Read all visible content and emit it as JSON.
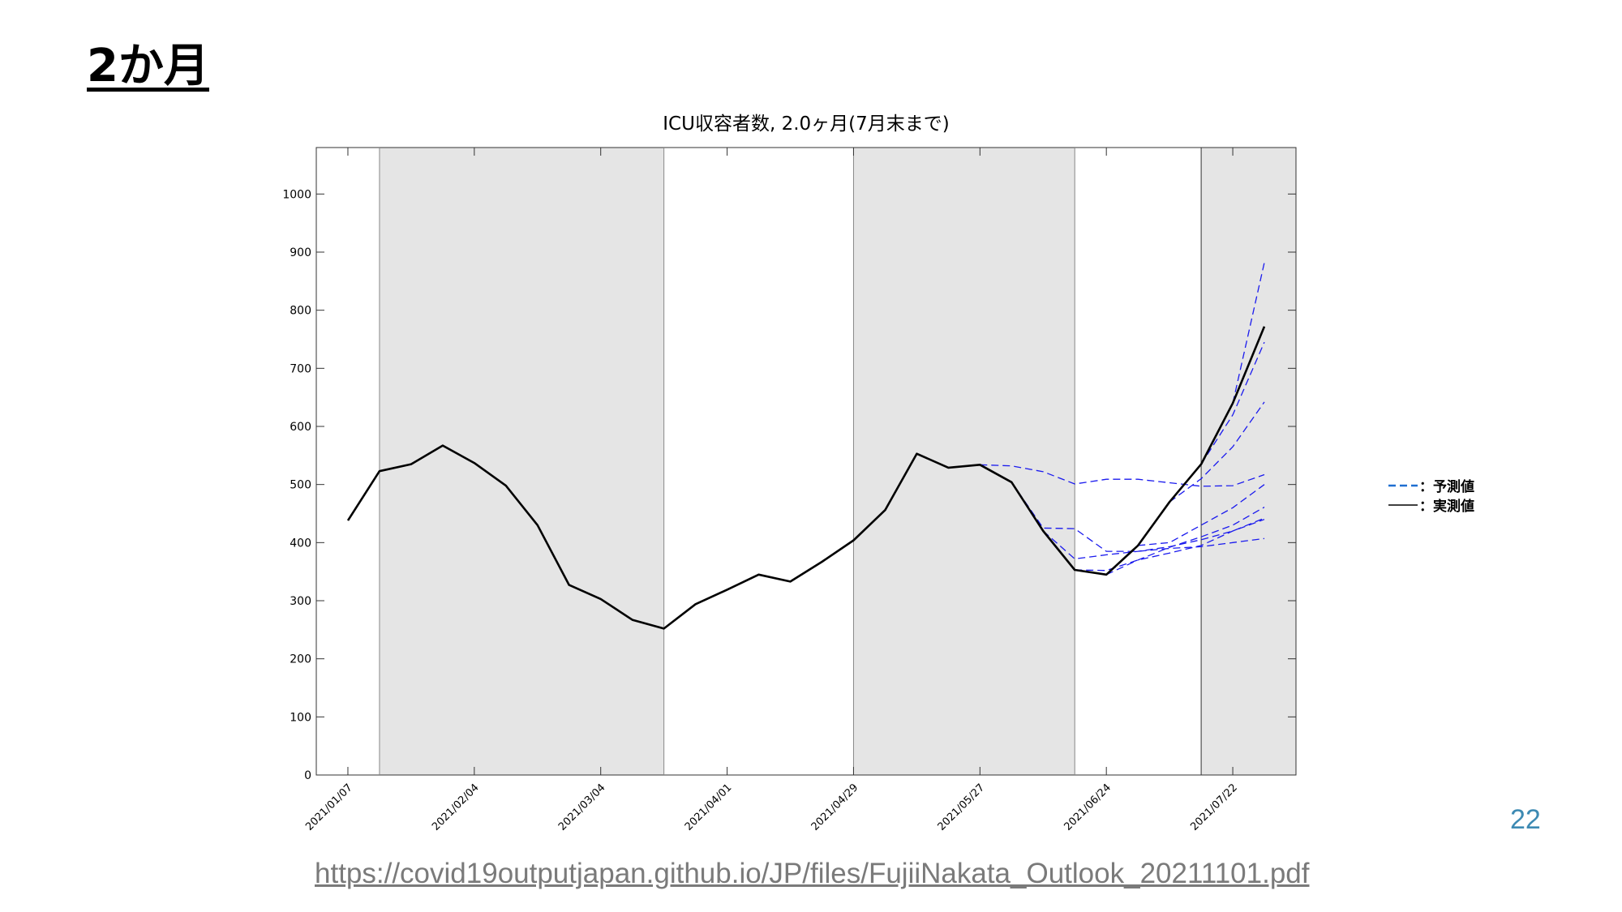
{
  "slide": {
    "title": "2か月",
    "page_number": "22",
    "source_url": "https://covid19outputjapan.github.io/JP/files/FujiiNakata_Outlook_20211101.pdf"
  },
  "colors": {
    "actual": "#000000",
    "forecast": "#1a1aee",
    "legend_forecast": "#1f6fd1",
    "shade": "#e5e5e5",
    "page_number": "#3d8ab3"
  },
  "chart_data": {
    "type": "line",
    "title": "ICU収容者数, 2.0ヶ月(7月末まで)",
    "xlabel": "",
    "ylabel": "",
    "x_tick_labels": [
      "2021/01/07",
      "2021/02/04",
      "2021/03/04",
      "2021/04/01",
      "2021/04/29",
      "2021/05/27",
      "2021/06/24",
      "2021/07/22"
    ],
    "x_tick_weeks": [
      0,
      4,
      8,
      12,
      16,
      20,
      24,
      28
    ],
    "xlim_weeks": [
      -1,
      30
    ],
    "ylim": [
      0,
      1080
    ],
    "y_ticks": [
      0,
      100,
      200,
      300,
      400,
      500,
      600,
      700,
      800,
      900,
      1000
    ],
    "grid": false,
    "legend_position": "right",
    "legend": [
      {
        "label": "：予測値",
        "style": "dashed"
      },
      {
        "label": "：実測値",
        "style": "solid"
      }
    ],
    "shaded_periods_weeks": [
      [
        1,
        10
      ],
      [
        16,
        23
      ],
      [
        27,
        30
      ]
    ],
    "separator_weeks": [
      1,
      10,
      16,
      23,
      27
    ],
    "series": [
      {
        "style": "solid",
        "x_weeks": [
          0,
          1,
          2,
          3,
          4,
          5,
          6,
          7,
          8,
          9,
          10,
          11,
          12,
          13,
          14,
          15,
          16,
          17,
          18,
          19,
          20,
          21,
          22,
          23,
          24,
          25,
          26,
          27,
          28,
          29
        ],
        "values": [
          438,
          523,
          535,
          567,
          537,
          498,
          430,
          327,
          303,
          267,
          252,
          294,
          319,
          345,
          333,
          367,
          404,
          456,
          553,
          529,
          534,
          504,
          420,
          353,
          345,
          395,
          470,
          535,
          640,
          772
        ]
      },
      {
        "style": "dashed",
        "x_weeks": [
          20,
          21,
          22,
          23,
          24,
          25,
          26,
          27,
          28,
          29
        ],
        "values": [
          534,
          532,
          522,
          501,
          509,
          509,
          503,
          497,
          498,
          517
        ]
      },
      {
        "style": "dashed",
        "x_weeks": [
          21,
          22,
          23,
          24,
          25,
          26,
          27,
          28,
          29
        ],
        "values": [
          504,
          425,
          424,
          385,
          385,
          390,
          393,
          400,
          407
        ]
      },
      {
        "style": "dashed",
        "x_weeks": [
          22,
          23,
          24,
          25,
          26,
          27,
          28,
          29
        ],
        "values": [
          420,
          372,
          379,
          385,
          393,
          405,
          420,
          442
        ]
      },
      {
        "style": "dashed",
        "x_weeks": [
          23,
          24,
          25,
          26,
          27,
          28,
          29
        ],
        "values": [
          353,
          352,
          370,
          382,
          395,
          420,
          440
        ]
      },
      {
        "style": "dashed",
        "x_weeks": [
          24,
          25,
          26,
          27,
          28,
          29
        ],
        "values": [
          345,
          370,
          392,
          410,
          430,
          461
        ]
      },
      {
        "style": "dashed",
        "x_weeks": [
          25,
          26,
          27,
          28,
          29
        ],
        "values": [
          395,
          400,
          430,
          460,
          500
        ]
      },
      {
        "style": "dashed",
        "x_weeks": [
          26,
          27,
          28,
          29
        ],
        "values": [
          470,
          510,
          565,
          642
        ]
      },
      {
        "style": "dashed",
        "x_weeks": [
          27,
          28,
          29
        ],
        "values": [
          535,
          620,
          745
        ]
      },
      {
        "style": "dashed",
        "x_weeks": [
          28,
          29
        ],
        "values": [
          640,
          882
        ]
      }
    ]
  }
}
